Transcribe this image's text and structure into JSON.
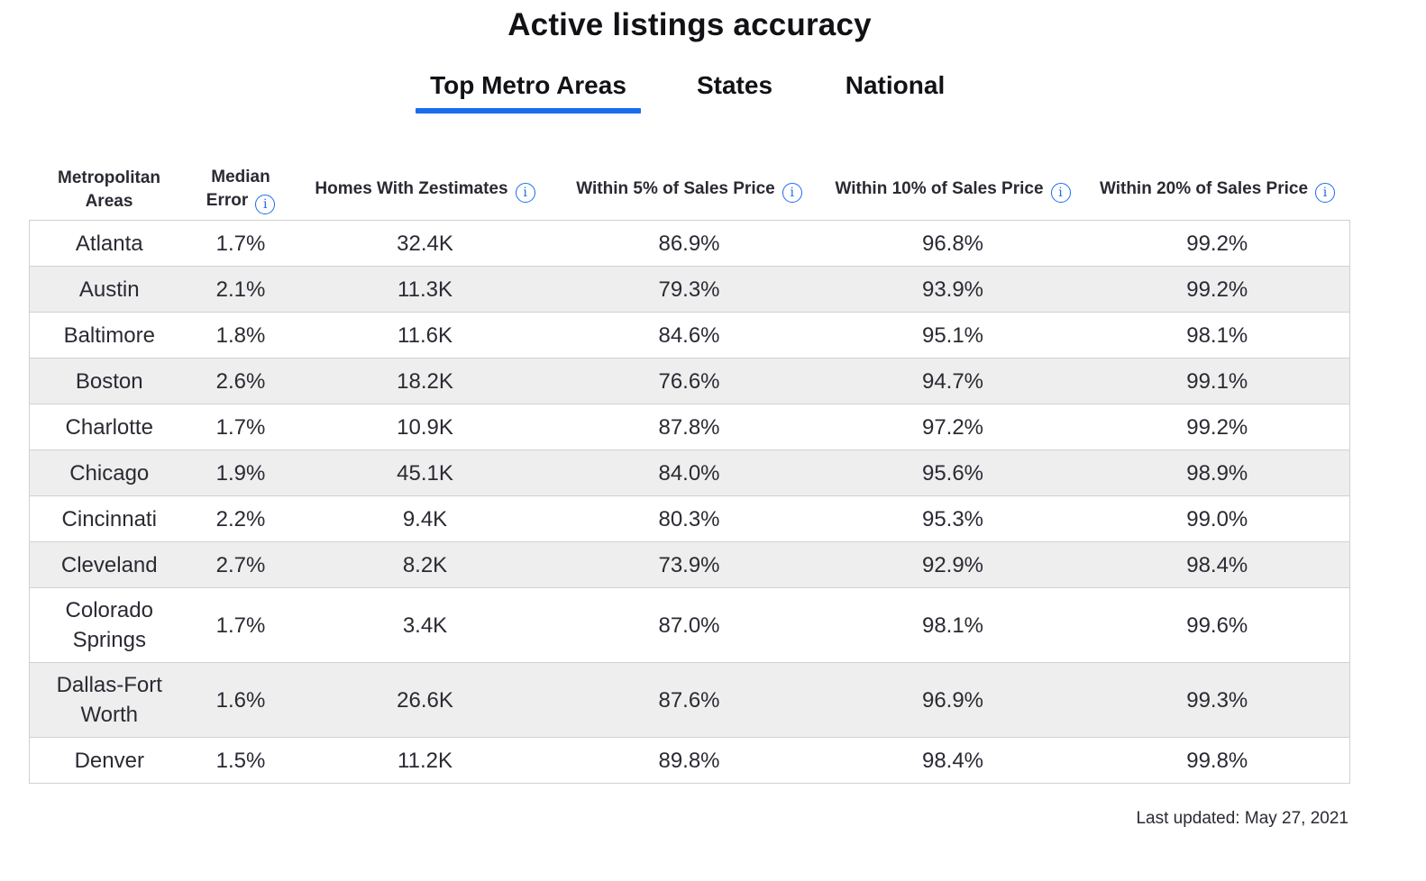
{
  "title": "Active listings accuracy",
  "tabs": [
    {
      "label": "Top Metro Areas",
      "active": true
    },
    {
      "label": "States",
      "active": false
    },
    {
      "label": "National",
      "active": false
    }
  ],
  "table": {
    "headers": {
      "area_line1": "Metropolitan",
      "area_line2": "Areas",
      "median_line1": "Median",
      "median_line2": "Error",
      "homes": "Homes With Zestimates",
      "within5": "Within 5% of Sales Price",
      "within10": "Within 10% of Sales Price",
      "within20": "Within 20% of Sales Price"
    },
    "info_icon_glyph": "i",
    "rows": [
      {
        "area": "Atlanta",
        "median_error": "1.7%",
        "homes": "32.4K",
        "within5": "86.9%",
        "within10": "96.8%",
        "within20": "99.2%"
      },
      {
        "area": "Austin",
        "median_error": "2.1%",
        "homes": "11.3K",
        "within5": "79.3%",
        "within10": "93.9%",
        "within20": "99.2%"
      },
      {
        "area": "Baltimore",
        "median_error": "1.8%",
        "homes": "11.6K",
        "within5": "84.6%",
        "within10": "95.1%",
        "within20": "98.1%"
      },
      {
        "area": "Boston",
        "median_error": "2.6%",
        "homes": "18.2K",
        "within5": "76.6%",
        "within10": "94.7%",
        "within20": "99.1%"
      },
      {
        "area": "Charlotte",
        "median_error": "1.7%",
        "homes": "10.9K",
        "within5": "87.8%",
        "within10": "97.2%",
        "within20": "99.2%"
      },
      {
        "area": "Chicago",
        "median_error": "1.9%",
        "homes": "45.1K",
        "within5": "84.0%",
        "within10": "95.6%",
        "within20": "98.9%"
      },
      {
        "area": "Cincinnati",
        "median_error": "2.2%",
        "homes": "9.4K",
        "within5": "80.3%",
        "within10": "95.3%",
        "within20": "99.0%"
      },
      {
        "area": "Cleveland",
        "median_error": "2.7%",
        "homes": "8.2K",
        "within5": "73.9%",
        "within10": "92.9%",
        "within20": "98.4%"
      },
      {
        "area": "Colorado Springs",
        "median_error": "1.7%",
        "homes": "3.4K",
        "within5": "87.0%",
        "within10": "98.1%",
        "within20": "99.6%"
      },
      {
        "area": "Dallas-Fort Worth",
        "median_error": "1.6%",
        "homes": "26.6K",
        "within5": "87.6%",
        "within10": "96.9%",
        "within20": "99.3%"
      },
      {
        "area": "Denver",
        "median_error": "1.5%",
        "homes": "11.2K",
        "within5": "89.8%",
        "within10": "98.4%",
        "within20": "99.8%"
      }
    ]
  },
  "last_updated": "Last updated: May 27, 2021",
  "colors": {
    "accent": "#1a6cf0",
    "stripe": "#eeeeee",
    "border": "#d1d1d5",
    "text": "#2a2a33"
  }
}
